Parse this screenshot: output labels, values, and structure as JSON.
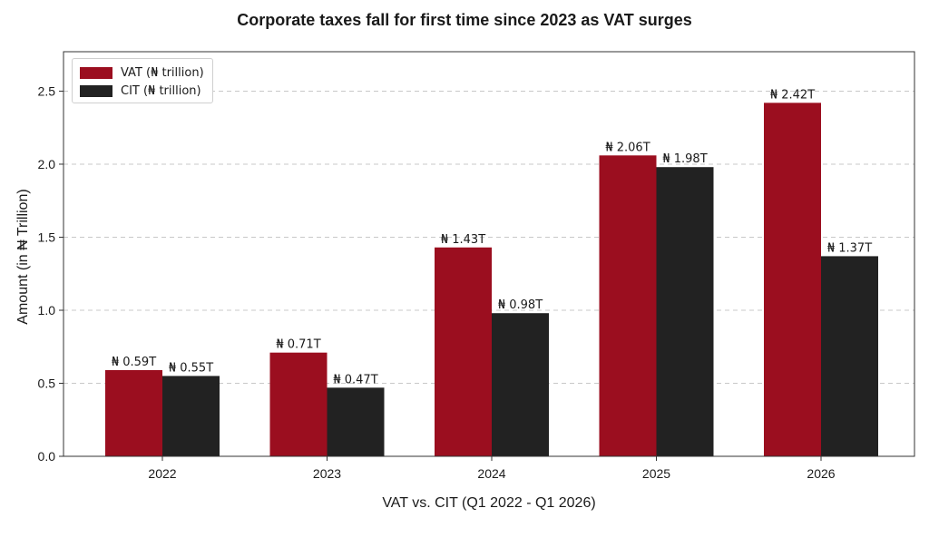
{
  "chart_data": {
    "type": "bar",
    "title": "Corporate taxes fall for first time since 2023 as VAT surges",
    "xlabel": "VAT vs. CIT (Q1 2022 - Q1 2026)",
    "ylabel": "Amount (in ₦ Trillion)",
    "categories": [
      "2022",
      "2023",
      "2024",
      "2025",
      "2026"
    ],
    "series": [
      {
        "name": "VAT (₦ trillion)",
        "values": [
          0.59,
          0.71,
          1.43,
          2.06,
          2.42
        ],
        "labels": [
          "₦ 0.59T",
          "₦ 0.71T",
          "₦ 1.43T",
          "₦ 2.06T",
          "₦ 2.42T"
        ],
        "color": "#9b0e1f"
      },
      {
        "name": "CIT (₦ trillion)",
        "values": [
          0.55,
          0.47,
          0.98,
          1.98,
          1.37
        ],
        "labels": [
          "₦ 0.55T",
          "₦ 0.47T",
          "₦ 0.98T",
          "₦ 1.98T",
          "₦ 1.37T"
        ],
        "color": "#222222"
      }
    ],
    "yticks": [
      "0.0",
      "0.5",
      "1.0",
      "1.5",
      "2.0",
      "2.5"
    ],
    "ylim": [
      0,
      2.77
    ],
    "grid": true,
    "legend_position": "top-left"
  }
}
